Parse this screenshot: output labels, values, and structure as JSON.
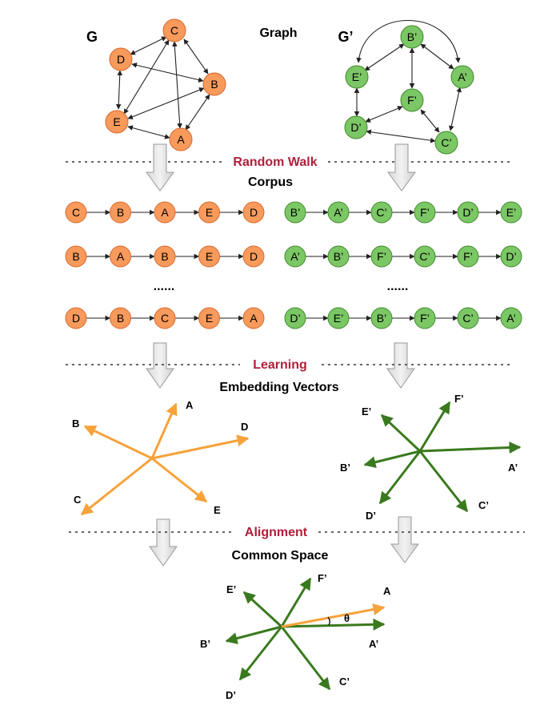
{
  "headings": {
    "graph": "Graph",
    "corpus": "Corpus",
    "embedding": "Embedding Vectors",
    "common": "Common Space"
  },
  "stages": {
    "random_walk": "Random Walk",
    "learning": "Learning",
    "alignment": "Alignment"
  },
  "graphs": {
    "left": {
      "label": "G",
      "nodes": [
        "C",
        "D",
        "B",
        "E",
        "A"
      ],
      "edges": [
        [
          "C",
          "D"
        ],
        [
          "C",
          "B"
        ],
        [
          "C",
          "E"
        ],
        [
          "C",
          "A"
        ],
        [
          "D",
          "B"
        ],
        [
          "D",
          "E"
        ],
        [
          "B",
          "E"
        ],
        [
          "B",
          "A"
        ],
        [
          "E",
          "A"
        ]
      ]
    },
    "right": {
      "label": "G’",
      "nodes": [
        "B’",
        "E’",
        "A’",
        "F’",
        "D’",
        "C’"
      ],
      "edges": [
        [
          "B’",
          "E’"
        ],
        [
          "B’",
          "A’"
        ],
        [
          "B’",
          "F’"
        ],
        [
          "E’",
          "A’"
        ],
        [
          "E’",
          "D’"
        ],
        [
          "F’",
          "D’"
        ],
        [
          "F’",
          "C’"
        ],
        [
          "D’",
          "C’"
        ],
        [
          "A’",
          "C’"
        ]
      ]
    }
  },
  "walks": {
    "left": [
      [
        "C",
        "B",
        "A",
        "E",
        "D"
      ],
      [
        "B",
        "A",
        "B",
        "E",
        "D"
      ],
      [
        "D",
        "B",
        "C",
        "E",
        "A"
      ]
    ],
    "right": [
      [
        "B’",
        "A’",
        "C’",
        "F’",
        "D’",
        "E’"
      ],
      [
        "A’",
        "B’",
        "F’",
        "C’",
        "F’",
        "D’"
      ],
      [
        "D’",
        "E’",
        "B’",
        "F’",
        "C’",
        "A’"
      ]
    ],
    "ellipsis": "......"
  },
  "embeddings": {
    "left": [
      "A",
      "B",
      "C",
      "D",
      "E"
    ],
    "right": [
      "A’",
      "B’",
      "C’",
      "D’",
      "E’",
      "F’"
    ]
  },
  "common_space": {
    "labels": [
      "A",
      "A’",
      "B’",
      "C’",
      "D’",
      "E’",
      "F’"
    ],
    "angle_label": "θ"
  },
  "colors": {
    "orange_fill": "#f79a5c",
    "orange_stroke": "#d8692d",
    "orange_vector": "#f7a23a",
    "green_fill": "#7cc765",
    "green_stroke": "#3f8a2c",
    "green_vector": "#3a7a1e",
    "stage_text": "#b0203a"
  }
}
